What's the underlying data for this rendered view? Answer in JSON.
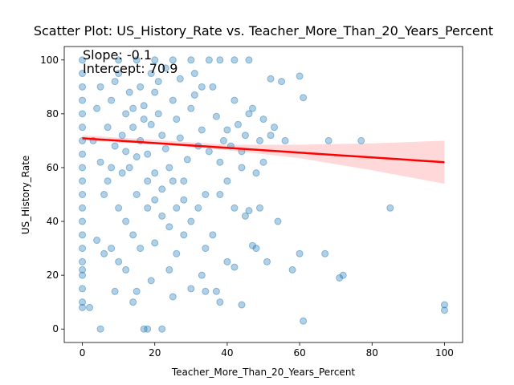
{
  "chart_data": {
    "type": "scatter",
    "title": "Scatter Plot: US_History_Rate vs. Teacher_More_Than_20_Years_Percent",
    "x_label": "Teacher_More_Than_20_Years_Percent",
    "y_label": "US_History_Rate",
    "annotations": [
      "Slope: -0.1",
      "Intercept: 70.9"
    ],
    "xlim": [
      -5,
      105
    ],
    "ylim": [
      -5,
      105
    ],
    "xticks": [
      0,
      20,
      40,
      60,
      80,
      100
    ],
    "yticks": [
      0,
      20,
      40,
      60,
      80,
      100
    ],
    "grid": false,
    "series": [
      {
        "name": "points",
        "color": "#1f77b4",
        "x": [
          100,
          100,
          85,
          77,
          68,
          72,
          71,
          67,
          61,
          60,
          61,
          60,
          56,
          58,
          54,
          55,
          52,
          51,
          50,
          48,
          47,
          49,
          46,
          45,
          44,
          42,
          40,
          38,
          37,
          34,
          33,
          30,
          25,
          24,
          22,
          18,
          17,
          5,
          2,
          0,
          0,
          0,
          0,
          0,
          0,
          0,
          0,
          0,
          0,
          0,
          0,
          0,
          0,
          0,
          0,
          0,
          0,
          0,
          0,
          0,
          5,
          8,
          10,
          12,
          14,
          15,
          16,
          18,
          20,
          22,
          24,
          26,
          28,
          30,
          32,
          34,
          36,
          38,
          40,
          42,
          44,
          46,
          48,
          35,
          38,
          42,
          46,
          30,
          25,
          20,
          10,
          8,
          6,
          10,
          12,
          14,
          16,
          18,
          20,
          22,
          24,
          26,
          28,
          30,
          32,
          34,
          36,
          38,
          40,
          42,
          44,
          10,
          12,
          8,
          6,
          4,
          3,
          4,
          5,
          7,
          9,
          11,
          13,
          15,
          17,
          19,
          21,
          23,
          25,
          27,
          29,
          31,
          33,
          35,
          37,
          39,
          41,
          43,
          45,
          47,
          50,
          52,
          49,
          53,
          15,
          18,
          20,
          22,
          25,
          28,
          13,
          11,
          16,
          19,
          23,
          27,
          31,
          33,
          21,
          17,
          14,
          12,
          9,
          7,
          15,
          9,
          14,
          20,
          26,
          19
        ],
        "values": [
          9,
          7,
          45,
          70,
          70,
          20,
          19,
          28,
          3,
          28,
          86,
          94,
          70,
          22,
          40,
          92,
          93,
          25,
          62,
          30,
          31,
          45,
          44,
          42,
          9,
          23,
          25,
          10,
          14,
          14,
          20,
          15,
          12,
          22,
          0,
          0,
          0,
          0,
          8,
          8,
          10,
          15,
          20,
          22,
          30,
          40,
          50,
          60,
          70,
          75,
          80,
          85,
          90,
          95,
          100,
          65,
          55,
          45,
          35,
          25,
          90,
          85,
          95,
          80,
          75,
          100,
          70,
          65,
          88,
          72,
          60,
          78,
          55,
          82,
          68,
          50,
          90,
          62,
          74,
          85,
          66,
          80,
          58,
          100,
          100,
          100,
          100,
          100,
          100,
          100,
          100,
          60,
          50,
          45,
          40,
          35,
          30,
          55,
          48,
          42,
          38,
          45,
          35,
          40,
          45,
          30,
          35,
          50,
          55,
          45,
          60,
          25,
          22,
          30,
          28,
          33,
          70,
          82,
          62,
          75,
          68,
          58,
          88,
          64,
          83,
          76,
          92,
          67,
          85,
          71,
          63,
          87,
          74,
          66,
          79,
          70,
          68,
          76,
          72,
          82,
          78,
          72,
          70,
          75,
          50,
          45,
          58,
          52,
          55,
          48,
          60,
          72,
          90,
          95,
          97,
          93,
          95,
          90,
          80,
          78,
          82,
          66,
          92,
          55,
          14,
          14,
          10,
          32,
          28,
          18
        ]
      }
    ],
    "regression": {
      "name": "fit",
      "color": "#ff0000",
      "x": [
        0,
        100
      ],
      "values": [
        70.9,
        62
      ]
    },
    "confidence_band": {
      "color": "#ff0000",
      "x": [
        0,
        20,
        40,
        60,
        80,
        100
      ],
      "lower": [
        70,
        68.7,
        66.5,
        63.5,
        59,
        54
      ],
      "upper": [
        72,
        70.3,
        68.5,
        68.5,
        69,
        70
      ]
    }
  }
}
